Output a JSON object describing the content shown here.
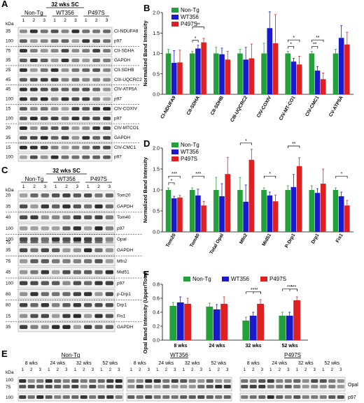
{
  "panels": {
    "A": {
      "letter": "A",
      "title": "32 wks SC",
      "groups": [
        "Non-Tg",
        "WT356",
        "P497S"
      ],
      "lanes": [
        "1",
        "2",
        "3",
        "1",
        "2",
        "3",
        "1",
        "2",
        "3"
      ],
      "unit": "kDa",
      "blots": [
        {
          "label": "CI-NDUFA9",
          "kda": "35",
          "seed": 3
        },
        {
          "label": "p97",
          "kda": "100",
          "seed": 7
        },
        {
          "label": "CII-SDHA",
          "kda": "75",
          "seed": 11
        },
        {
          "label": "GAPDH",
          "kda": "35",
          "seed": 13
        },
        {
          "label": "CII-SDHB",
          "kda": "25",
          "seed": 17
        },
        {
          "label": "CIII-UQCRC2",
          "kda": "45",
          "seed": 19
        },
        {
          "label": "CIV-ATP5A",
          "kda": "45",
          "seed": 23
        },
        {
          "label": "p97",
          "kda": "100",
          "seed": 29
        },
        {
          "label": "CIV-COXIV",
          "kda": "15",
          "seed": 31
        },
        {
          "label": "p97",
          "kda": "100",
          "seed": 37
        },
        {
          "label": "CIV-MTCO1",
          "kda": "20",
          "seed": 41
        },
        {
          "label": "GAPDH",
          "kda": "35",
          "seed": 43
        },
        {
          "label": "CIV-CMC1",
          "kda": "15",
          "seed": 47
        },
        {
          "label": "p97",
          "kda": "100",
          "seed": 53
        }
      ]
    },
    "C": {
      "letter": "C",
      "title": "32 wks SC",
      "groups": [
        "Non-Tg",
        "WT356",
        "P497S"
      ],
      "lanes": [
        "1",
        "2",
        "3",
        "1",
        "2",
        "3",
        "1",
        "2",
        "3"
      ],
      "unit": "kDa",
      "blots": [
        {
          "label": "Tom20",
          "kda": "20",
          "seed": 59
        },
        {
          "label": "GAPDH",
          "kda": "35",
          "seed": 61
        },
        {
          "label": "Tom40",
          "kda": "40",
          "seed": 67
        },
        {
          "label": "p97",
          "kda": "100",
          "seed": 71
        },
        {
          "label": "Opal",
          "kda": "100",
          "kda2": "75",
          "seed": 73
        },
        {
          "label": "GAPDH",
          "kda": "35",
          "seed": 79
        },
        {
          "label": "Mfn2",
          "kda": "75",
          "seed": 83
        },
        {
          "label": "Mid51",
          "kda": "45",
          "seed": 89
        },
        {
          "label": "p97",
          "kda": "100",
          "seed": 97
        },
        {
          "label": "p-Drp1",
          "kda": "80",
          "seed": 101
        },
        {
          "label": "Drp1",
          "kda": "80",
          "seed": 103
        },
        {
          "label": "Fis1",
          "kda": "15",
          "seed": 107
        },
        {
          "label": "GAPDH",
          "kda": "35",
          "seed": 109
        }
      ]
    },
    "E": {
      "letter": "E",
      "unit": "kDa",
      "groups": [
        "Non-Tg",
        "WT356",
        "P497S"
      ],
      "timepoints": [
        "8 wks",
        "24 wks",
        "32 wks",
        "52 wks"
      ],
      "lanes": [
        "1",
        "2",
        "3"
      ],
      "bands": [
        "Opal",
        "p97"
      ],
      "kda": [
        "100",
        "75",
        "100"
      ]
    }
  },
  "chart_data": [
    {
      "panel": "B",
      "type": "bar",
      "ylabel": "Normalized Band Intensity",
      "ylim": [
        0,
        2.0
      ],
      "yticks": [
        "0.0",
        "0.5",
        "1.0",
        "1.5",
        "2.0"
      ],
      "categories": [
        "CI-NDUFA9",
        "CII-SDHA",
        "CII-SDHB",
        "CIII-UQCRC2",
        "CIV-COXIV",
        "CIV-MT-CO1",
        "CIV-CMC1",
        "CV-ATP5A"
      ],
      "series": [
        {
          "name": "Non-Tg",
          "color": "#22a03a",
          "values": [
            1.0,
            1.0,
            1.0,
            1.0,
            1.0,
            1.0,
            1.0,
            1.0
          ],
          "errors": [
            0.1,
            0.05,
            0.15,
            0.1,
            0.25,
            0.05,
            0.05,
            0.1
          ]
        },
        {
          "name": "WT356",
          "color": "#1a1acc",
          "values": [
            0.77,
            1.12,
            0.98,
            0.85,
            1.62,
            0.8,
            0.58,
            1.38
          ],
          "errors": [
            0.3,
            0.08,
            0.15,
            0.3,
            0.4,
            0.08,
            0.1,
            0.3
          ]
        },
        {
          "name": "P497S",
          "color": "#e02020",
          "values": [
            0.78,
            1.27,
            0.85,
            0.88,
            1.25,
            0.73,
            0.37,
            1.22
          ],
          "errors": [
            0.3,
            0.1,
            0.2,
            0.35,
            0.7,
            0.2,
            0.15,
            0.3
          ]
        }
      ],
      "annotations": [
        {
          "between": [
            1,
            0,
            1,
            2
          ],
          "text": "**"
        },
        {
          "between": [
            1,
            0,
            1,
            1
          ],
          "text": "*"
        },
        {
          "between": [
            5,
            0,
            5,
            2
          ],
          "text": "*"
        },
        {
          "between": [
            5,
            0,
            5,
            1
          ],
          "text": "*"
        },
        {
          "between": [
            6,
            0,
            6,
            2
          ],
          "text": "**"
        },
        {
          "between": [
            6,
            0,
            6,
            1
          ],
          "text": "**"
        }
      ]
    },
    {
      "panel": "D",
      "type": "bar",
      "ylabel": "Normalized Band Intensity",
      "ylim": [
        0,
        2.0
      ],
      "yticks": [
        "0.0",
        "0.5",
        "1.0",
        "1.5",
        "2.0"
      ],
      "categories": [
        "Tom20",
        "Tom40",
        "Total Opal",
        "Mfn2",
        "Mid51",
        "P-Drp1",
        "Drp1",
        "Fis1"
      ],
      "series": [
        {
          "name": "Non-Tg",
          "color": "#22a03a",
          "values": [
            1.0,
            1.0,
            1.0,
            1.0,
            1.0,
            1.0,
            1.0,
            1.0
          ],
          "errors": [
            0.05,
            0.05,
            0.3,
            0.3,
            0.05,
            0.1,
            0.1,
            0.05
          ]
        },
        {
          "name": "WT356",
          "color": "#1a1acc",
          "values": [
            0.8,
            0.87,
            0.85,
            0.72,
            0.87,
            1.07,
            0.93,
            0.85
          ],
          "errors": [
            0.05,
            0.15,
            0.3,
            0.4,
            0.08,
            0.3,
            0.1,
            0.1
          ]
        },
        {
          "name": "P497S",
          "color": "#e02020",
          "values": [
            0.82,
            0.63,
            1.38,
            1.72,
            0.73,
            1.57,
            1.15,
            0.63
          ],
          "errors": [
            0.05,
            0.1,
            0.4,
            0.25,
            0.15,
            0.2,
            0.35,
            0.12
          ]
        }
      ],
      "annotations": [
        {
          "between": [
            0,
            0,
            0,
            2
          ],
          "text": "***"
        },
        {
          "between": [
            0,
            0,
            0,
            1
          ],
          "text": "*"
        },
        {
          "between": [
            1,
            0,
            1,
            2
          ],
          "text": "***"
        },
        {
          "between": [
            3,
            0,
            3,
            2
          ],
          "text": "*"
        },
        {
          "between": [
            4,
            0,
            4,
            2
          ],
          "text": "*"
        },
        {
          "between": [
            5,
            0,
            5,
            2
          ],
          "text": "**"
        },
        {
          "between": [
            7,
            0,
            7,
            2
          ],
          "text": "*"
        }
      ]
    },
    {
      "panel": "F",
      "type": "bar",
      "ylabel": "Opal Band Intensity (Upper/Total)",
      "ylim": [
        0,
        0.8
      ],
      "yticks": [
        "0.0",
        "0.2",
        "0.4",
        "0.6",
        "0.8"
      ],
      "categories": [
        "8 wks",
        "24 wks",
        "32 wks",
        "52 wks"
      ],
      "series": [
        {
          "name": "Non-Tg",
          "color": "#22a03a",
          "values": [
            0.49,
            0.48,
            0.28,
            0.35
          ],
          "errors": [
            0.05,
            0.05,
            0.05,
            0.05
          ]
        },
        {
          "name": "WT356",
          "color": "#1a1acc",
          "values": [
            0.54,
            0.44,
            0.35,
            0.35
          ],
          "errors": [
            0.08,
            0.07,
            0.05,
            0.05
          ]
        },
        {
          "name": "P497S",
          "color": "#e02020",
          "values": [
            0.52,
            0.52,
            0.52,
            0.57
          ],
          "errors": [
            0.08,
            0.1,
            0.06,
            0.05
          ]
        }
      ],
      "annotations": [
        {
          "between": [
            2,
            0,
            2,
            2
          ],
          "text": "***"
        },
        {
          "between": [
            2,
            1,
            2,
            2
          ],
          "text": "*"
        },
        {
          "between": [
            3,
            0,
            3,
            2
          ],
          "text": "***"
        },
        {
          "between": [
            3,
            1,
            3,
            2
          ],
          "text": "***"
        }
      ]
    }
  ]
}
